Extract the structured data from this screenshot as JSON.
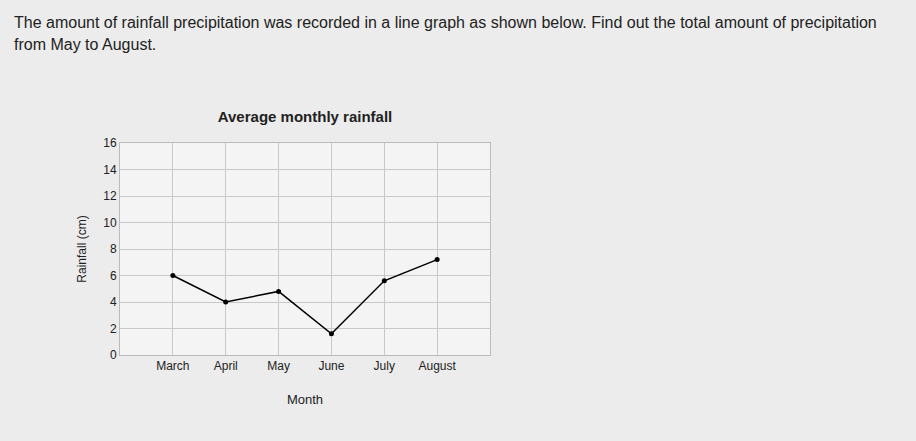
{
  "question": "The amount of rainfall precipitation was recorded in a line graph as shown below. Find out the total amount of precipitation from May to August.",
  "chart_data": {
    "type": "line",
    "title": "Average monthly rainfall",
    "x_label": "Month",
    "y_label": "Rainfall (cm)",
    "categories": [
      "March",
      "April",
      "May",
      "June",
      "July",
      "August"
    ],
    "values": [
      6,
      4,
      4.8,
      1.6,
      5.6,
      7.2
    ],
    "color": "#000000",
    "marker": "circle",
    "ylim": [
      0,
      16
    ],
    "yticks": [
      0,
      2,
      4,
      6,
      8,
      10,
      12,
      14,
      16
    ],
    "grid": true
  }
}
